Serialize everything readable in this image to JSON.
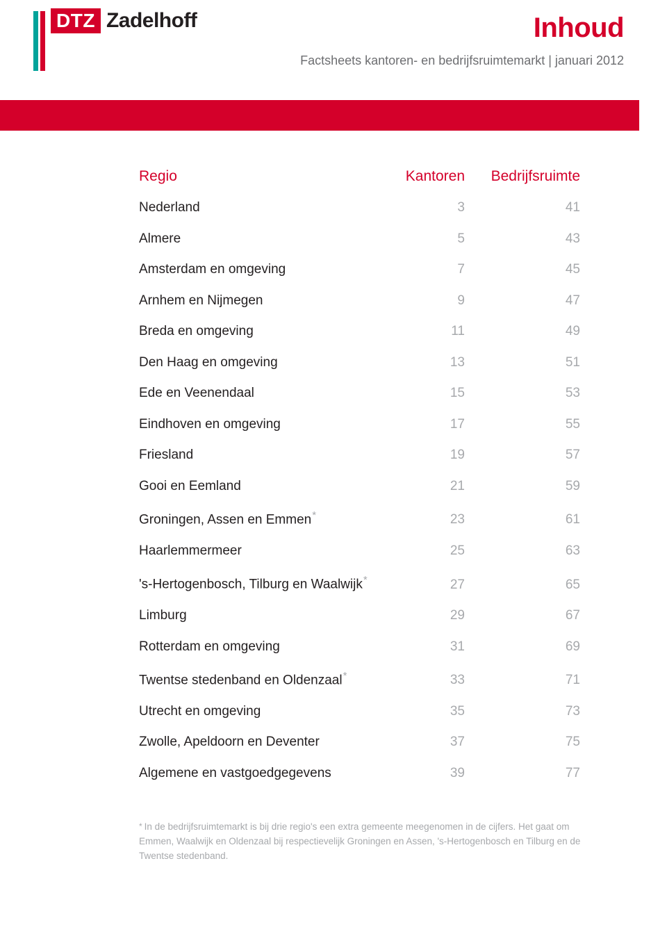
{
  "brand": {
    "colors": {
      "accent_red": "#d4002a",
      "accent_teal": "#00a39a",
      "text_dark": "#231f20",
      "text_muted": "#6d6e71",
      "text_link": "#a7a9ac",
      "background": "#ffffff"
    },
    "logo_dtz": "DTZ",
    "logo_zadelhoff": "Zadelhoff"
  },
  "header": {
    "title": "Inhoud",
    "subtitle": "Factsheets kantoren- en bedrijfsruimtemarkt | januari 2012"
  },
  "table": {
    "columns": {
      "region": "Regio",
      "kantoren": "Kantoren",
      "bedrijfsruimte": "Bedrijfsruimte"
    },
    "rows": [
      {
        "region": "Nederland",
        "kantoren": "3",
        "bedrijfsruimte": "41",
        "star": false
      },
      {
        "region": "Almere",
        "kantoren": "5",
        "bedrijfsruimte": "43",
        "star": false
      },
      {
        "region": "Amsterdam en omgeving",
        "kantoren": "7",
        "bedrijfsruimte": "45",
        "star": false
      },
      {
        "region": "Arnhem en Nijmegen",
        "kantoren": "9",
        "bedrijfsruimte": "47",
        "star": false
      },
      {
        "region": "Breda en omgeving",
        "kantoren": "11",
        "bedrijfsruimte": "49",
        "star": false
      },
      {
        "region": "Den Haag en omgeving",
        "kantoren": "13",
        "bedrijfsruimte": "51",
        "star": false
      },
      {
        "region": "Ede en Veenendaal",
        "kantoren": "15",
        "bedrijfsruimte": "53",
        "star": false
      },
      {
        "region": "Eindhoven en omgeving",
        "kantoren": "17",
        "bedrijfsruimte": "55",
        "star": false
      },
      {
        "region": "Friesland",
        "kantoren": "19",
        "bedrijfsruimte": "57",
        "star": false
      },
      {
        "region": "Gooi en Eemland",
        "kantoren": "21",
        "bedrijfsruimte": "59",
        "star": false
      },
      {
        "region": "Groningen, Assen en Emmen",
        "kantoren": "23",
        "bedrijfsruimte": "61",
        "star": true
      },
      {
        "region": "Haarlemmermeer",
        "kantoren": "25",
        "bedrijfsruimte": "63",
        "star": false
      },
      {
        "region": "'s-Hertogenbosch, Tilburg en Waalwijk",
        "kantoren": "27",
        "bedrijfsruimte": "65",
        "star": true
      },
      {
        "region": "Limburg",
        "kantoren": "29",
        "bedrijfsruimte": "67",
        "star": false
      },
      {
        "region": "Rotterdam en omgeving",
        "kantoren": "31",
        "bedrijfsruimte": "69",
        "star": false
      },
      {
        "region": "Twentse stedenband en Oldenzaal",
        "kantoren": "33",
        "bedrijfsruimte": "71",
        "star": true
      },
      {
        "region": "Utrecht en omgeving",
        "kantoren": "35",
        "bedrijfsruimte": "73",
        "star": false
      },
      {
        "region": "Zwolle, Apeldoorn en Deventer",
        "kantoren": "37",
        "bedrijfsruimte": "75",
        "star": false
      },
      {
        "region": "Algemene en vastgoedgegevens",
        "kantoren": "39",
        "bedrijfsruimte": "77",
        "star": false
      }
    ]
  },
  "footnote": {
    "marker": "*",
    "text": "In de bedrijfsruimtemarkt is bij drie regio's een extra gemeente meegenomen in de cijfers. Het gaat om Emmen, Waalwijk en Oldenzaal bij respectievelijk Groningen en Assen, 's-Hertogenbosch en Tilburg en de Twentse stedenband."
  }
}
